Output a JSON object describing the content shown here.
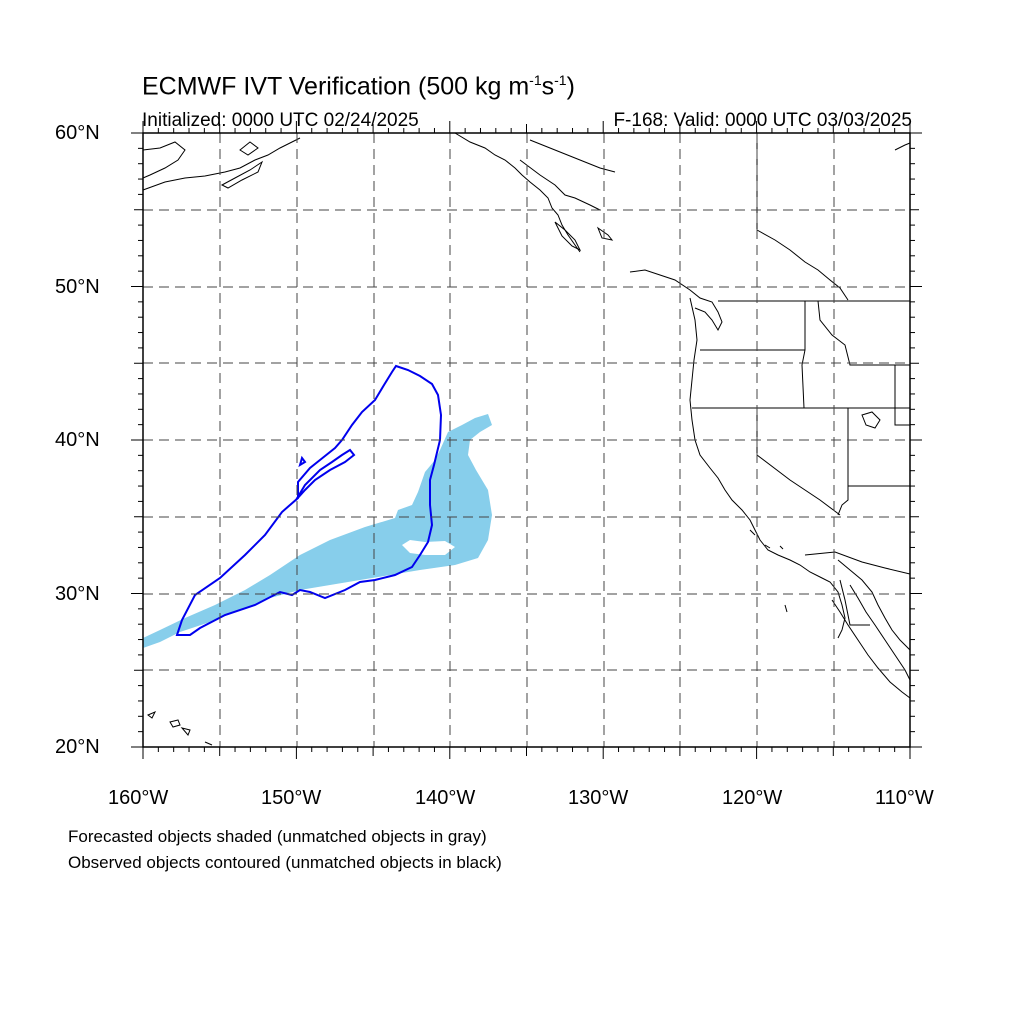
{
  "header": {
    "title_main": "ECMWF IVT Verification (500 kg m",
    "title_exp1": "-1",
    "title_mid": "s",
    "title_exp2": "-1",
    "title_end": ")",
    "initialized": "Initialized: 0000 UTC 02/24/2025",
    "valid": "F-168: Valid: 0000 UTC 03/03/2025"
  },
  "axes": {
    "lat_labels": [
      "60°N",
      "50°N",
      "40°N",
      "30°N",
      "20°N"
    ],
    "lon_labels": [
      "160°W",
      "150°W",
      "140°W",
      "130°W",
      "120°W",
      "110°W"
    ],
    "lat_range": [
      20,
      60
    ],
    "lon_range": [
      -160,
      -110
    ]
  },
  "legend": {
    "line1": "Forecasted objects shaded (unmatched objects in gray)",
    "line2": "Observed objects contoured (unmatched objects in black)"
  },
  "colors": {
    "forecast_fill": "#87ceeb",
    "observed_contour": "#0000ee",
    "coastline": "#000000",
    "grid": "#333333"
  }
}
